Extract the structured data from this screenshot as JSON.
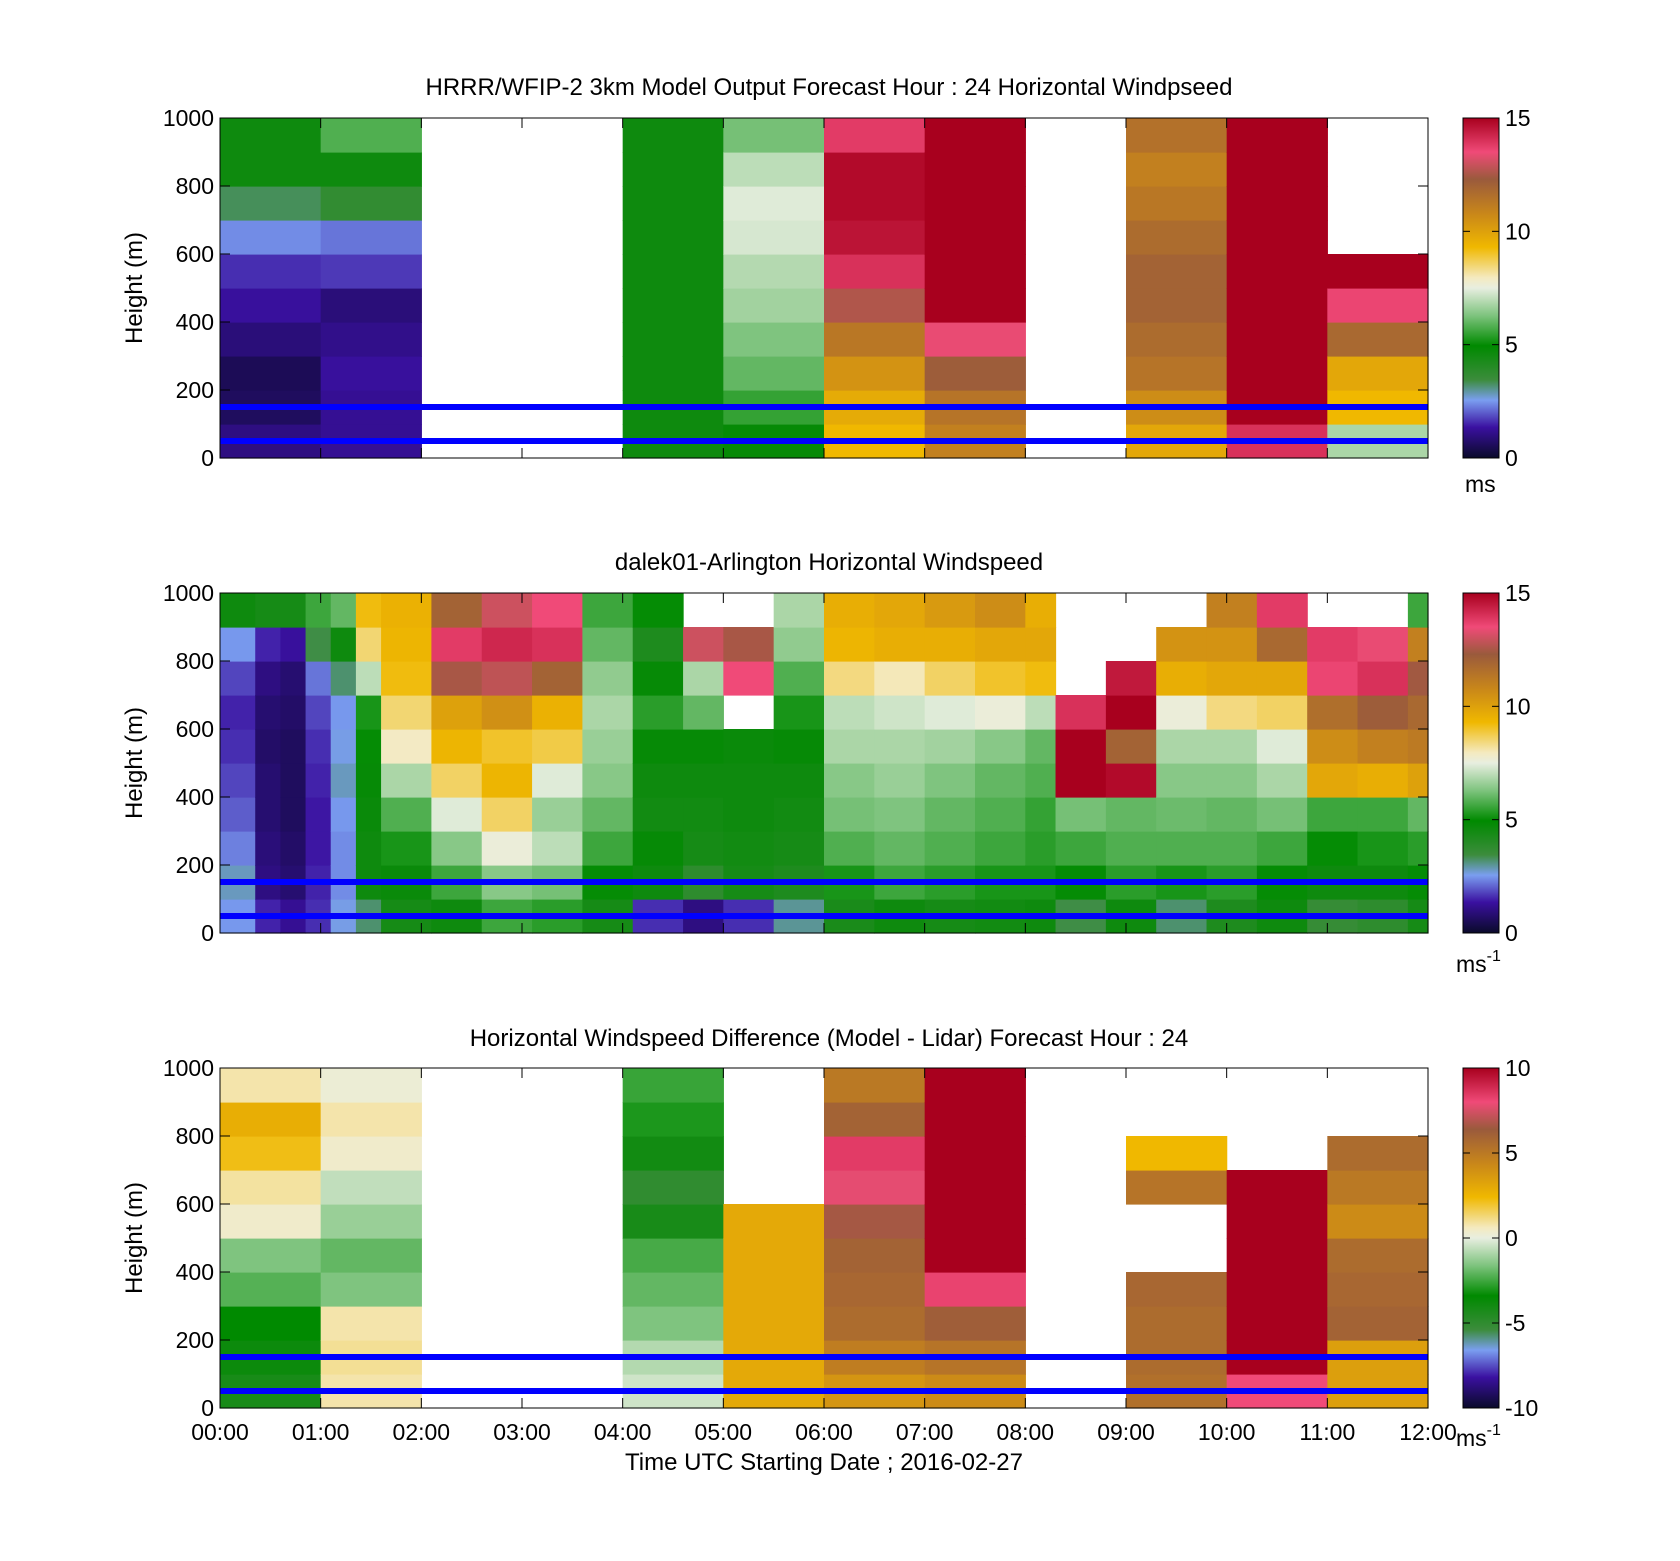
{
  "figure": {
    "xlabel": "Time UTC  Starting Date ; 2016-02-27",
    "x_ticks": [
      "00:00",
      "01:00",
      "02:00",
      "03:00",
      "04:00",
      "05:00",
      "06:00",
      "07:00",
      "08:00",
      "09:00",
      "10:00",
      "11:00",
      "12:00"
    ],
    "reference_heights_m": [
      150,
      50
    ],
    "reference_line_color": "#0000ff"
  },
  "chart_data": [
    {
      "type": "heatmap",
      "title": "HRRR/WFIP-2 3km Model Output   Forecast Hour : 24 Horizontal Windpseed",
      "ylabel": "Height (m)",
      "ylim": [
        0,
        1000
      ],
      "y_ticks": [
        "0",
        "200",
        "400",
        "600",
        "800",
        "1000"
      ],
      "x_unit": "hour UTC",
      "xlim": [
        0,
        12
      ],
      "colorbar": {
        "min": 0,
        "max": 15,
        "ticks": [
          "0",
          "5",
          "10",
          "15"
        ],
        "unit": "ms",
        "unit_sup": ""
      },
      "levels": [
        0,
        100,
        200,
        300,
        400,
        500,
        600,
        700,
        800,
        900,
        1000
      ],
      "columns": [
        {
          "t0": 0,
          "t1": 1,
          "values": [
            1.0,
            0.6,
            0.5,
            0.9,
            1.3,
            1.6,
            2.4,
            3.3,
            4.6,
            4.6
          ]
        },
        {
          "t0": 1,
          "t1": 2,
          "values": [
            1.2,
            1.2,
            1.3,
            1.1,
            0.9,
            1.7,
            2.2,
            3.7,
            4.6,
            5.8
          ]
        },
        {
          "t0": 2,
          "t1": 3,
          "values": []
        },
        {
          "t0": 3,
          "t1": 4,
          "values": []
        },
        {
          "t0": 4,
          "t1": 5,
          "values": [
            4.6,
            4.6,
            4.6,
            4.6,
            4.6,
            4.6,
            4.6,
            4.6,
            4.6,
            4.6
          ]
        },
        {
          "t0": 5,
          "t1": 6,
          "values": [
            4.8,
            5.5,
            6.0,
            6.3,
            6.7,
            6.9,
            7.3,
            7.4,
            7.0,
            6.2
          ]
        },
        {
          "t0": 6,
          "t1": 7,
          "values": [
            9.3,
            9.7,
            10.4,
            11.3,
            12.6,
            14.0,
            14.6,
            14.8,
            14.8,
            13.8
          ]
        },
        {
          "t0": 7,
          "t1": 8,
          "values": [
            11.0,
            11.4,
            12.2,
            13.4,
            15.0,
            15.0,
            15.0,
            15.0,
            15.0,
            15.0
          ]
        },
        {
          "t0": 8,
          "t1": 9,
          "values": []
        },
        {
          "t0": 9,
          "t1": 10,
          "values": [
            9.8,
            10.6,
            11.4,
            11.7,
            12.0,
            12.0,
            11.7,
            11.3,
            11.0,
            11.5
          ]
        },
        {
          "t0": 10,
          "t1": 11,
          "values": [
            14.0,
            15.0,
            15.0,
            15.0,
            15.0,
            15.0,
            15.0,
            15.0,
            15.0,
            15.0
          ]
        },
        {
          "t0": 11,
          "t1": 12,
          "values": [
            6.8,
            9.3,
            9.8,
            11.8,
            13.6,
            15.0,
            null,
            null,
            null,
            null
          ]
        }
      ]
    },
    {
      "type": "heatmap",
      "title": "dalek01-Arlington  Horizontal Windspeed",
      "ylabel": "Height (m)",
      "ylim": [
        0,
        1000
      ],
      "y_ticks": [
        "0",
        "200",
        "400",
        "600",
        "800",
        "1000"
      ],
      "x_unit": "hour UTC",
      "xlim": [
        0,
        12
      ],
      "colorbar": {
        "min": 0,
        "max": 15,
        "ticks": [
          "0",
          "5",
          "10",
          "15"
        ],
        "unit": "ms",
        "unit_sup": "-1"
      },
      "levels": [
        0,
        100,
        200,
        300,
        400,
        500,
        600,
        700,
        800,
        900,
        1000
      ],
      "columns": [
        {
          "t0": 0.0,
          "t1": 0.35,
          "values": [
            2.5,
            2.8,
            2.3,
            2.0,
            1.8,
            1.6,
            1.5,
            1.8,
            2.5,
            4.6
          ]
        },
        {
          "t0": 0.35,
          "t1": 0.6,
          "values": [
            1.5,
            1.0,
            0.9,
            0.8,
            0.8,
            0.7,
            0.8,
            1.0,
            1.5,
            4.4
          ]
        },
        {
          "t0": 0.6,
          "t1": 0.85,
          "values": [
            1.2,
            0.8,
            0.7,
            0.6,
            0.6,
            0.6,
            0.7,
            0.8,
            1.3,
            4.4
          ]
        },
        {
          "t0": 0.85,
          "t1": 1.1,
          "values": [
            1.6,
            1.5,
            1.4,
            1.4,
            1.5,
            1.6,
            1.8,
            2.2,
            3.4,
            5.6
          ]
        },
        {
          "t0": 1.1,
          "t1": 1.35,
          "values": [
            2.6,
            2.4,
            2.4,
            2.5,
            2.8,
            2.6,
            2.5,
            3.2,
            4.6,
            6.0
          ]
        },
        {
          "t0": 1.35,
          "t1": 1.6,
          "values": [
            3.2,
            4.6,
            4.6,
            4.7,
            4.8,
            5.0,
            5.2,
            7.0,
            8.5,
            9.2
          ]
        },
        {
          "t0": 1.6,
          "t1": 2.1,
          "values": [
            4.4,
            4.7,
            5.2,
            5.8,
            6.8,
            7.9,
            8.5,
            9.2,
            9.4,
            9.5
          ]
        },
        {
          "t0": 2.1,
          "t1": 2.6,
          "values": [
            4.6,
            5.6,
            6.4,
            7.4,
            8.6,
            9.4,
            10.0,
            12.5,
            13.8,
            12.0
          ]
        },
        {
          "t0": 2.6,
          "t1": 3.1,
          "values": [
            5.6,
            6.4,
            7.6,
            8.6,
            9.4,
            9.0,
            10.5,
            12.8,
            14.2,
            13.0
          ]
        },
        {
          "t0": 3.1,
          "t1": 3.6,
          "values": [
            5.4,
            6.2,
            7.0,
            6.6,
            7.4,
            8.8,
            9.5,
            12.0,
            14.0,
            13.5
          ]
        },
        {
          "t0": 3.6,
          "t1": 4.1,
          "values": [
            4.4,
            5.0,
            5.6,
            6.0,
            6.4,
            6.6,
            6.8,
            6.5,
            6.0,
            5.6
          ]
        },
        {
          "t0": 4.1,
          "t1": 4.6,
          "values": [
            1.6,
            4.6,
            4.8,
            4.5,
            4.6,
            4.8,
            5.4,
            4.8,
            4.2,
            5.0
          ]
        },
        {
          "t0": 4.6,
          "t1": 5.0,
          "values": [
            1.0,
            3.8,
            4.4,
            4.5,
            4.6,
            4.8,
            6.0,
            6.8,
            13.0,
            null
          ]
        },
        {
          "t0": 5.0,
          "t1": 5.5,
          "values": [
            1.6,
            4.4,
            4.5,
            4.6,
            4.6,
            4.7,
            null,
            13.5,
            12.5,
            null
          ]
        },
        {
          "t0": 5.5,
          "t1": 6.0,
          "values": [
            3.0,
            4.2,
            4.4,
            4.5,
            4.6,
            4.8,
            5.2,
            5.8,
            6.5,
            6.8
          ]
        },
        {
          "t0": 6.0,
          "t1": 6.5,
          "values": [
            4.3,
            5.2,
            5.8,
            6.2,
            6.4,
            6.8,
            7.0,
            8.4,
            9.4,
            9.6
          ]
        },
        {
          "t0": 6.5,
          "t1": 7.0,
          "values": [
            4.6,
            5.6,
            6.0,
            6.3,
            6.6,
            6.8,
            7.2,
            8.0,
            9.6,
            9.8
          ]
        },
        {
          "t0": 7.0,
          "t1": 7.5,
          "values": [
            4.4,
            5.4,
            5.8,
            6.0,
            6.3,
            6.7,
            7.4,
            8.6,
            9.6,
            10.2
          ]
        },
        {
          "t0": 7.5,
          "t1": 8.0,
          "values": [
            4.5,
            5.2,
            5.6,
            5.8,
            6.0,
            6.4,
            7.6,
            9.0,
            9.8,
            10.6
          ]
        },
        {
          "t0": 8.0,
          "t1": 8.3,
          "values": [
            4.6,
            5.2,
            5.4,
            5.5,
            5.8,
            6.0,
            7.0,
            9.2,
            9.8,
            9.6
          ]
        },
        {
          "t0": 8.3,
          "t1": 8.8,
          "values": [
            3.4,
            5.0,
            5.6,
            6.2,
            15.0,
            15.0,
            14.0,
            null,
            null,
            null
          ]
        },
        {
          "t0": 8.8,
          "t1": 9.3,
          "values": [
            4.6,
            5.4,
            5.8,
            6.0,
            14.8,
            12.0,
            15.0,
            14.5,
            null,
            null
          ]
        },
        {
          "t0": 9.3,
          "t1": 9.8,
          "values": [
            3.2,
            5.2,
            5.8,
            6.1,
            6.4,
            6.8,
            7.6,
            9.6,
            10.4,
            null
          ]
        },
        {
          "t0": 9.8,
          "t1": 10.3,
          "values": [
            4.2,
            5.4,
            5.8,
            6.0,
            6.4,
            6.8,
            8.4,
            9.8,
            10.4,
            11.0
          ]
        },
        {
          "t0": 10.3,
          "t1": 10.8,
          "values": [
            4.6,
            5.0,
            5.6,
            6.2,
            6.8,
            7.4,
            8.6,
            9.8,
            11.8,
            13.8
          ]
        },
        {
          "t0": 10.8,
          "t1": 11.3,
          "values": [
            3.6,
            4.6,
            5.0,
            5.6,
            9.8,
            10.6,
            11.6,
            13.6,
            13.8,
            null
          ]
        },
        {
          "t0": 11.3,
          "t1": 11.8,
          "values": [
            3.8,
            4.6,
            5.2,
            5.6,
            9.6,
            11.0,
            12.2,
            14.0,
            13.4,
            null
          ]
        },
        {
          "t0": 11.8,
          "t1": 12.0,
          "values": [
            4.4,
            5.0,
            5.4,
            6.0,
            10.0,
            11.2,
            11.8,
            12.4,
            11.0,
            5.6
          ]
        }
      ]
    },
    {
      "type": "heatmap",
      "title": "Horizontal Windspeed Difference (Model - Lidar) Forecast Hour : 24",
      "ylabel": "Height (m)",
      "ylim": [
        0,
        1000
      ],
      "y_ticks": [
        "0",
        "200",
        "400",
        "600",
        "800",
        "1000"
      ],
      "x_unit": "hour UTC",
      "xlim": [
        0,
        12
      ],
      "colorbar": {
        "min": -10,
        "max": 10,
        "ticks": [
          "-10",
          "-5",
          "0",
          "5",
          "10"
        ],
        "unit": "ms",
        "unit_sup": "-1"
      },
      "levels": [
        0,
        100,
        200,
        300,
        400,
        500,
        600,
        700,
        800,
        900,
        1000
      ],
      "columns": [
        {
          "t0": 0,
          "t1": 1,
          "values": [
            -4.2,
            -3.8,
            -3.4,
            -2.2,
            -1.6,
            0.4,
            0.9,
            2.2,
            2.8,
            0.8
          ]
        },
        {
          "t0": 1,
          "t1": 2,
          "values": [
            0.8,
            1.0,
            0.8,
            -1.6,
            -2.0,
            -1.2,
            -0.6,
            0.4,
            0.8,
            0.2
          ]
        },
        {
          "t0": 2,
          "t1": 3,
          "values": []
        },
        {
          "t0": 3,
          "t1": 4,
          "values": []
        },
        {
          "t0": 4,
          "t1": 5,
          "values": [
            -0.4,
            -0.8,
            -1.6,
            -2.0,
            -2.4,
            -4.2,
            -5.0,
            -4.0,
            -3.0,
            -2.6
          ]
        },
        {
          "t0": 5,
          "t1": 6,
          "values": [
            3.0,
            3.0,
            3.0,
            3.0,
            3.0,
            3.0,
            null,
            null,
            null,
            null
          ]
        },
        {
          "t0": 6,
          "t1": 7,
          "values": [
            3.8,
            4.8,
            5.6,
            5.8,
            6.0,
            6.6,
            7.8,
            8.4,
            6.0,
            5.0
          ]
        },
        {
          "t0": 7,
          "t1": 8,
          "values": [
            4.2,
            5.2,
            6.2,
            8.2,
            10.0,
            10.0,
            10.0,
            10.0,
            10.0,
            10.0
          ]
        },
        {
          "t0": 8,
          "t1": 9,
          "values": []
        },
        {
          "t0": 9,
          "t1": 10,
          "values": [
            5.4,
            5.6,
            5.6,
            5.8,
            null,
            null,
            5.2,
            2.4,
            null,
            null
          ]
        },
        {
          "t0": 10,
          "t1": 11,
          "values": [
            8.0,
            10.0,
            10.0,
            10.0,
            10.0,
            10.0,
            10.0,
            null,
            null,
            null
          ]
        },
        {
          "t0": 11,
          "t1": 12,
          "values": [
            3.4,
            3.4,
            6.0,
            5.8,
            5.6,
            4.2,
            5.0,
            5.6,
            null,
            null
          ]
        }
      ]
    }
  ]
}
